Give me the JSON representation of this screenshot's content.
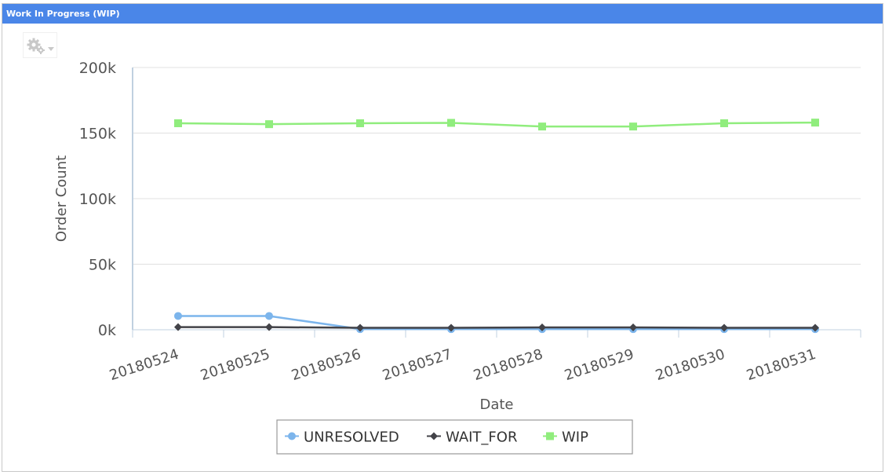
{
  "panel": {
    "title": "Work In Progress (WIP)"
  },
  "icons": {
    "options": "gear-icon"
  },
  "colors": {
    "header": "#4a86e8",
    "unresolved": "#7cb5ec",
    "wait_for": "#434348",
    "wip": "#90ed7d",
    "grid": "#e0e0e0",
    "axis_line": "#c0d0e0"
  },
  "chart_data": {
    "type": "line",
    "xlabel": "Date",
    "ylabel": "Order Count",
    "ylim": [
      0,
      200000
    ],
    "yticks": [
      "0k",
      "50k",
      "100k",
      "150k",
      "200k"
    ],
    "ytick_values": [
      0,
      50000,
      100000,
      150000,
      200000
    ],
    "categories": [
      "20180524",
      "20180525",
      "20180526",
      "20180527",
      "20180528",
      "20180529",
      "20180530",
      "20180531"
    ],
    "grid": true,
    "legend_position": "bottom-center",
    "series": [
      {
        "name": "UNRESOLVED",
        "marker": "circle",
        "values": [
          10500,
          10500,
          500,
          500,
          500,
          500,
          500,
          500
        ]
      },
      {
        "name": "WAIT_FOR",
        "marker": "diamond",
        "values": [
          2000,
          2000,
          1500,
          1500,
          1800,
          1800,
          1500,
          1500
        ]
      },
      {
        "name": "WIP",
        "marker": "square",
        "values": [
          157500,
          156800,
          157500,
          157800,
          155000,
          155000,
          157500,
          158000
        ]
      }
    ]
  }
}
